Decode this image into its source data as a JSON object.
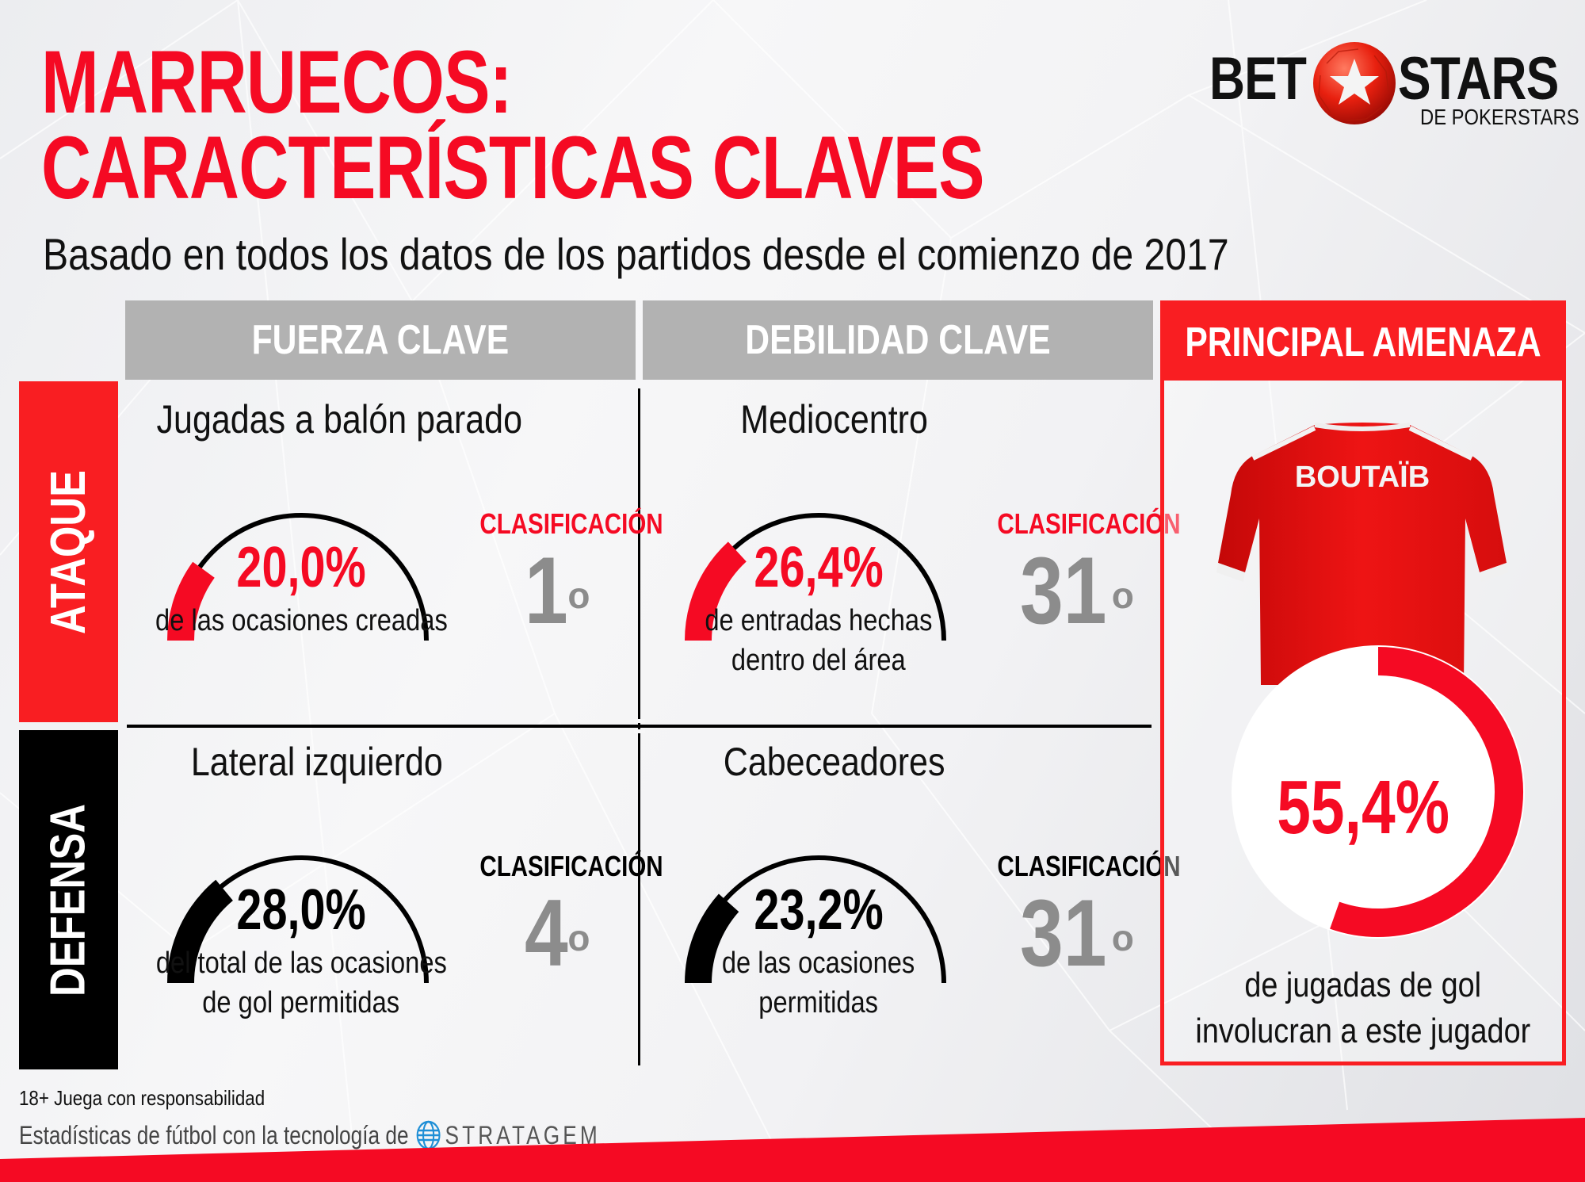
{
  "header": {
    "title_line1": "MARRUECOS:",
    "title_line2": "CARACTERÍSTICAS CLAVES",
    "subtitle": "Basado en todos los datos de los partidos desde el comienzo de 2017"
  },
  "logo": {
    "left": "BET",
    "right": "STARS",
    "sub": "DE POKERSTARS",
    "icon": "soccer-ball-star-icon"
  },
  "columns": {
    "strength": "FUERZA CLAVE",
    "weakness": "DEBILIDAD CLAVE",
    "threat": "PRINCIPAL AMENAZA"
  },
  "rows": {
    "attack": "ATAQUE",
    "defense": "DEFENSA"
  },
  "cells": {
    "attack_strength": {
      "category": "Jugadas a balón parado",
      "value": "20,0%",
      "percent": 20.0,
      "description_line1": "de las ocasiones creadas",
      "description_line2": "",
      "rank_label": "CLASIFICACIÓN",
      "rank": "1",
      "rank_suffix": "o",
      "color": "#f50a23"
    },
    "attack_weakness": {
      "category": "Mediocentro",
      "value": "26,4%",
      "percent": 26.4,
      "description_line1": "de entradas hechas",
      "description_line2": "dentro del área",
      "rank_label": "CLASIFICACIÓN",
      "rank": "31",
      "rank_suffix": "o",
      "color": "#f50a23"
    },
    "defense_strength": {
      "category": "Lateral izquierdo",
      "value": "28,0%",
      "percent": 28.0,
      "description_line1": "del total de las ocasiones",
      "description_line2": "de gol permitidas",
      "rank_label": "CLASIFICACIÓN",
      "rank": "4",
      "rank_suffix": "o",
      "color": "#000000"
    },
    "defense_weakness": {
      "category": "Cabeceadores",
      "value": "23,2%",
      "percent": 23.2,
      "description_line1": "de las ocasiones",
      "description_line2": "permitidas",
      "rank_label": "CLASIFICACIÓN",
      "rank": "31",
      "rank_suffix": "o",
      "color": "#000000"
    }
  },
  "threat": {
    "player_name": "BOUTAÏB",
    "value": "55,4%",
    "percent": 55.4,
    "description_line1": "de jugadas de gol",
    "description_line2": "involucran a este jugador"
  },
  "footer": {
    "responsible": "18+ Juega con responsabilidad",
    "powered_by": "Estadísticas de fútbol con la tecnología de",
    "partner": "STRATAGEM"
  },
  "colors": {
    "accent_red": "#f50a23",
    "header_red": "#f91e22",
    "header_gray": "#b2b2b2",
    "rank_gray": "#8c8c8c"
  }
}
